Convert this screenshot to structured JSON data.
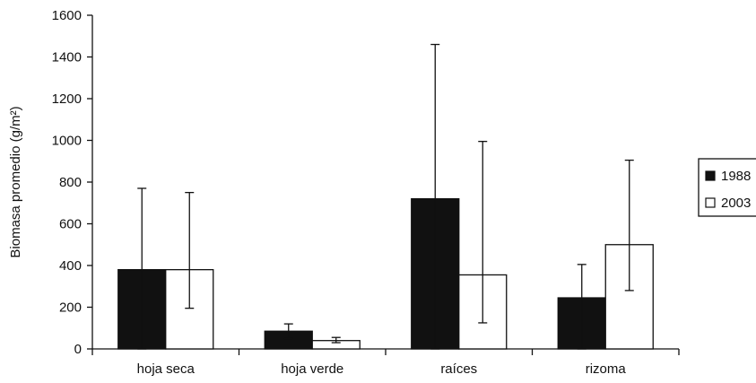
{
  "chart_data": {
    "type": "bar",
    "title": "",
    "xlabel": "",
    "ylabel": "Biomasa promedio (g/m²)",
    "ylim": [
      0,
      1600
    ],
    "yticks": [
      0,
      200,
      400,
      600,
      800,
      1000,
      1200,
      1400,
      1600
    ],
    "categories": [
      "hoja seca",
      "hoja verde",
      "raíces",
      "rizoma"
    ],
    "series": [
      {
        "name": "1988",
        "color": "#111111",
        "fill": "solid",
        "values": [
          380,
          85,
          720,
          245
        ],
        "error_upper": [
          770,
          120,
          1460,
          405
        ],
        "error_lower": [
          0,
          50,
          0,
          0
        ]
      },
      {
        "name": "2003",
        "color": "#ffffff",
        "fill": "hollow",
        "values": [
          380,
          40,
          355,
          500
        ],
        "error_upper": [
          750,
          55,
          995,
          905
        ],
        "error_lower": [
          195,
          30,
          125,
          280
        ]
      }
    ],
    "grid": false,
    "legend": {
      "position": "right",
      "entries": [
        "1988",
        "2003"
      ]
    }
  }
}
